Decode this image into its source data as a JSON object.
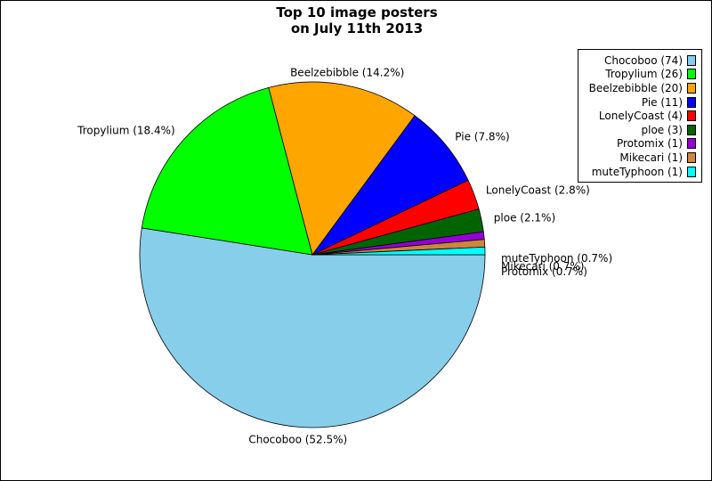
{
  "chart_data": {
    "type": "pie",
    "title_lines": [
      "Top 10 image posters",
      "on July 11th 2013"
    ],
    "slices": [
      {
        "name": "Chocoboo",
        "count": 74,
        "percent": 52.5,
        "color": "#87ceeb",
        "label": "Chocoboo (52.5%)",
        "legend": "Chocoboo (74)"
      },
      {
        "name": "Tropylium",
        "count": 26,
        "percent": 18.4,
        "color": "#00ff00",
        "label": "Tropylium (18.4%)",
        "legend": "Tropylium (26)"
      },
      {
        "name": "Beelzebibble",
        "count": 20,
        "percent": 14.2,
        "color": "#ffa500",
        "label": "Beelzebibble (14.2%)",
        "legend": "Beelzebibble (20)"
      },
      {
        "name": "Pie",
        "count": 11,
        "percent": 7.8,
        "color": "#0000ff",
        "label": "Pie (7.8%)",
        "legend": "Pie (11)"
      },
      {
        "name": "LonelyCoast",
        "count": 4,
        "percent": 2.8,
        "color": "#ff0000",
        "label": "LonelyCoast (2.8%)",
        "legend": "LonelyCoast (4)"
      },
      {
        "name": "ploe",
        "count": 3,
        "percent": 2.1,
        "color": "#006400",
        "label": "ploe (2.1%)",
        "legend": "ploe (3)"
      },
      {
        "name": "Protomix",
        "count": 1,
        "percent": 0.7,
        "color": "#9400d3",
        "label": "Protomix (0.7%)",
        "legend": "Protomix (1)"
      },
      {
        "name": "Mikecari",
        "count": 1,
        "percent": 0.7,
        "color": "#cd853f",
        "label": "Mikecari (0.7%)",
        "legend": "Mikecari (1)"
      },
      {
        "name": "muteTyphoon",
        "count": 1,
        "percent": 0.7,
        "color": "#00ffff",
        "label": "muteTyphoon (0.7%)",
        "legend": "muteTyphoon (1)"
      }
    ],
    "legend_position": "top-right",
    "start_angle": "3 o'clock",
    "direction": "clockwise"
  }
}
